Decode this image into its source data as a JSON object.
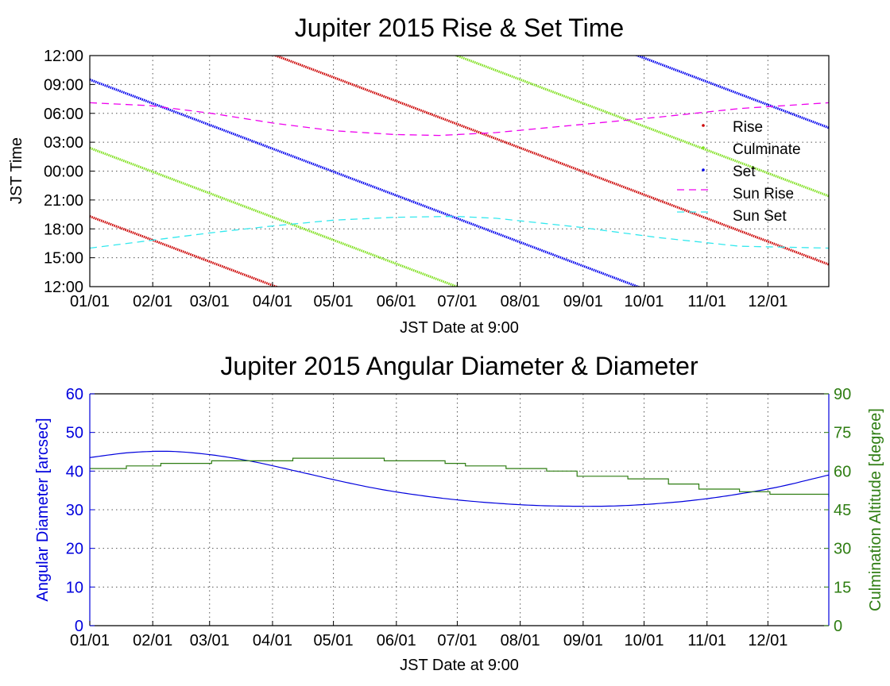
{
  "colors": {
    "rise": "#cc0000",
    "culminate": "#80e020",
    "set": "#0000ee",
    "sun_rise": "#ee00ee",
    "sun_set": "#33e8ee",
    "diameter": "#0000dd",
    "altitude": "#2e7d12"
  },
  "chart_data": [
    {
      "type": "line",
      "title": "Jupiter 2015 Rise & Set Time",
      "xlabel": "JST Date at 9:00",
      "ylabel": "JST Time",
      "x_unit": "day of year 2015 (Jan 1 = 0)",
      "xlim": [
        0,
        364
      ],
      "x_ticks": [
        {
          "label": "01/01",
          "day": 0
        },
        {
          "label": "02/01",
          "day": 31
        },
        {
          "label": "03/01",
          "day": 59
        },
        {
          "label": "04/01",
          "day": 90
        },
        {
          "label": "05/01",
          "day": 120
        },
        {
          "label": "06/01",
          "day": 151
        },
        {
          "label": "07/01",
          "day": 181
        },
        {
          "label": "08/01",
          "day": 212
        },
        {
          "label": "09/01",
          "day": 243
        },
        {
          "label": "10/01",
          "day": 273
        },
        {
          "label": "11/01",
          "day": 304
        },
        {
          "label": "12/01",
          "day": 334
        }
      ],
      "y_unit": "hours after 12:00 JST (wraps every 24 h)",
      "ylim": [
        0,
        24
      ],
      "y_ticks": [
        {
          "label": "12:00",
          "v": 0
        },
        {
          "label": "15:00",
          "v": 3
        },
        {
          "label": "18:00",
          "v": 6
        },
        {
          "label": "21:00",
          "v": 9
        },
        {
          "label": "00:00",
          "v": 12
        },
        {
          "label": "03:00",
          "v": 15
        },
        {
          "label": "06:00",
          "v": 18
        },
        {
          "label": "09:00",
          "v": 21
        },
        {
          "label": "12:00",
          "v": 24
        }
      ],
      "grid": true,
      "legend_position": "right",
      "legend": [
        "Rise",
        "Culminate",
        "Set",
        "Sun Rise",
        "Sun Set"
      ],
      "series": [
        {
          "name": "Rise",
          "style": "dots",
          "color_key": "rise",
          "wrap": true,
          "x": [
            0,
            364
          ],
          "y": [
            7.3,
            -21.7
          ]
        },
        {
          "name": "Culminate",
          "style": "dots",
          "color_key": "culminate",
          "wrap": true,
          "x": [
            0,
            364
          ],
          "y": [
            14.4,
            -14.6
          ]
        },
        {
          "name": "Set",
          "style": "dots",
          "color_key": "set",
          "wrap": true,
          "x": [
            0,
            364
          ],
          "y": [
            21.5,
            -7.5
          ]
        },
        {
          "name": "Sun Rise",
          "style": "dashed",
          "color_key": "sun_rise",
          "wrap": false,
          "x": [
            0,
            30,
            60,
            90,
            120,
            150,
            172,
            200,
            240,
            280,
            320,
            364
          ],
          "y": [
            19.1,
            18.8,
            18.0,
            17.0,
            16.2,
            15.8,
            15.7,
            16.0,
            16.8,
            17.6,
            18.5,
            19.1
          ]
        },
        {
          "name": "Sun Set",
          "style": "dashed",
          "color_key": "sun_set",
          "wrap": false,
          "x": [
            0,
            30,
            60,
            90,
            120,
            150,
            180,
            200,
            240,
            280,
            320,
            364
          ],
          "y": [
            4.0,
            4.8,
            5.6,
            6.3,
            6.9,
            7.2,
            7.3,
            7.1,
            6.2,
            5.1,
            4.2,
            4.0
          ]
        }
      ]
    },
    {
      "type": "line",
      "title": "Jupiter 2015 Angular Diameter & Diameter",
      "xlabel": "JST Date at 9:00",
      "ylabel": "Angular Diameter [arcsec]",
      "y2label": "Culmination Altitude [degree]",
      "x_unit": "day of year 2015 (Jan 1 = 0)",
      "xlim": [
        0,
        364
      ],
      "x_ticks": [
        {
          "label": "01/01",
          "day": 0
        },
        {
          "label": "02/01",
          "day": 31
        },
        {
          "label": "03/01",
          "day": 59
        },
        {
          "label": "04/01",
          "day": 90
        },
        {
          "label": "05/01",
          "day": 120
        },
        {
          "label": "06/01",
          "day": 151
        },
        {
          "label": "07/01",
          "day": 181
        },
        {
          "label": "08/01",
          "day": 212
        },
        {
          "label": "09/01",
          "day": 243
        },
        {
          "label": "10/01",
          "day": 273
        },
        {
          "label": "11/01",
          "day": 304
        },
        {
          "label": "12/01",
          "day": 334
        }
      ],
      "ylim": [
        0,
        60
      ],
      "y_ticks": [
        "0",
        "10",
        "20",
        "30",
        "40",
        "50",
        "60"
      ],
      "y2lim": [
        0,
        90
      ],
      "y2_ticks": [
        "0",
        "15",
        "30",
        "45",
        "60",
        "75",
        "90"
      ],
      "grid": true,
      "series": [
        {
          "name": "Angular Diameter",
          "axis": "left",
          "style": "line",
          "color_key": "diameter",
          "x": [
            0,
            20,
            40,
            60,
            80,
            100,
            120,
            140,
            160,
            180,
            200,
            220,
            240,
            260,
            280,
            300,
            320,
            340,
            364
          ],
          "y": [
            43.5,
            44.8,
            45.1,
            44.2,
            42.5,
            40.2,
            37.8,
            35.6,
            33.9,
            32.6,
            31.7,
            31.1,
            30.9,
            31.0,
            31.6,
            32.6,
            34.1,
            36.0,
            39.0
          ]
        },
        {
          "name": "Culmination Altitude",
          "axis": "right",
          "style": "step",
          "color_key": "altitude",
          "x": [
            0,
            18,
            35,
            60,
            100,
            145,
            175,
            185,
            205,
            225,
            240,
            265,
            285,
            300,
            320,
            335,
            364
          ],
          "y": [
            61,
            62,
            63,
            64,
            65,
            64,
            63,
            62,
            61,
            60,
            58,
            57,
            55,
            53,
            52,
            51,
            50
          ]
        }
      ]
    }
  ]
}
